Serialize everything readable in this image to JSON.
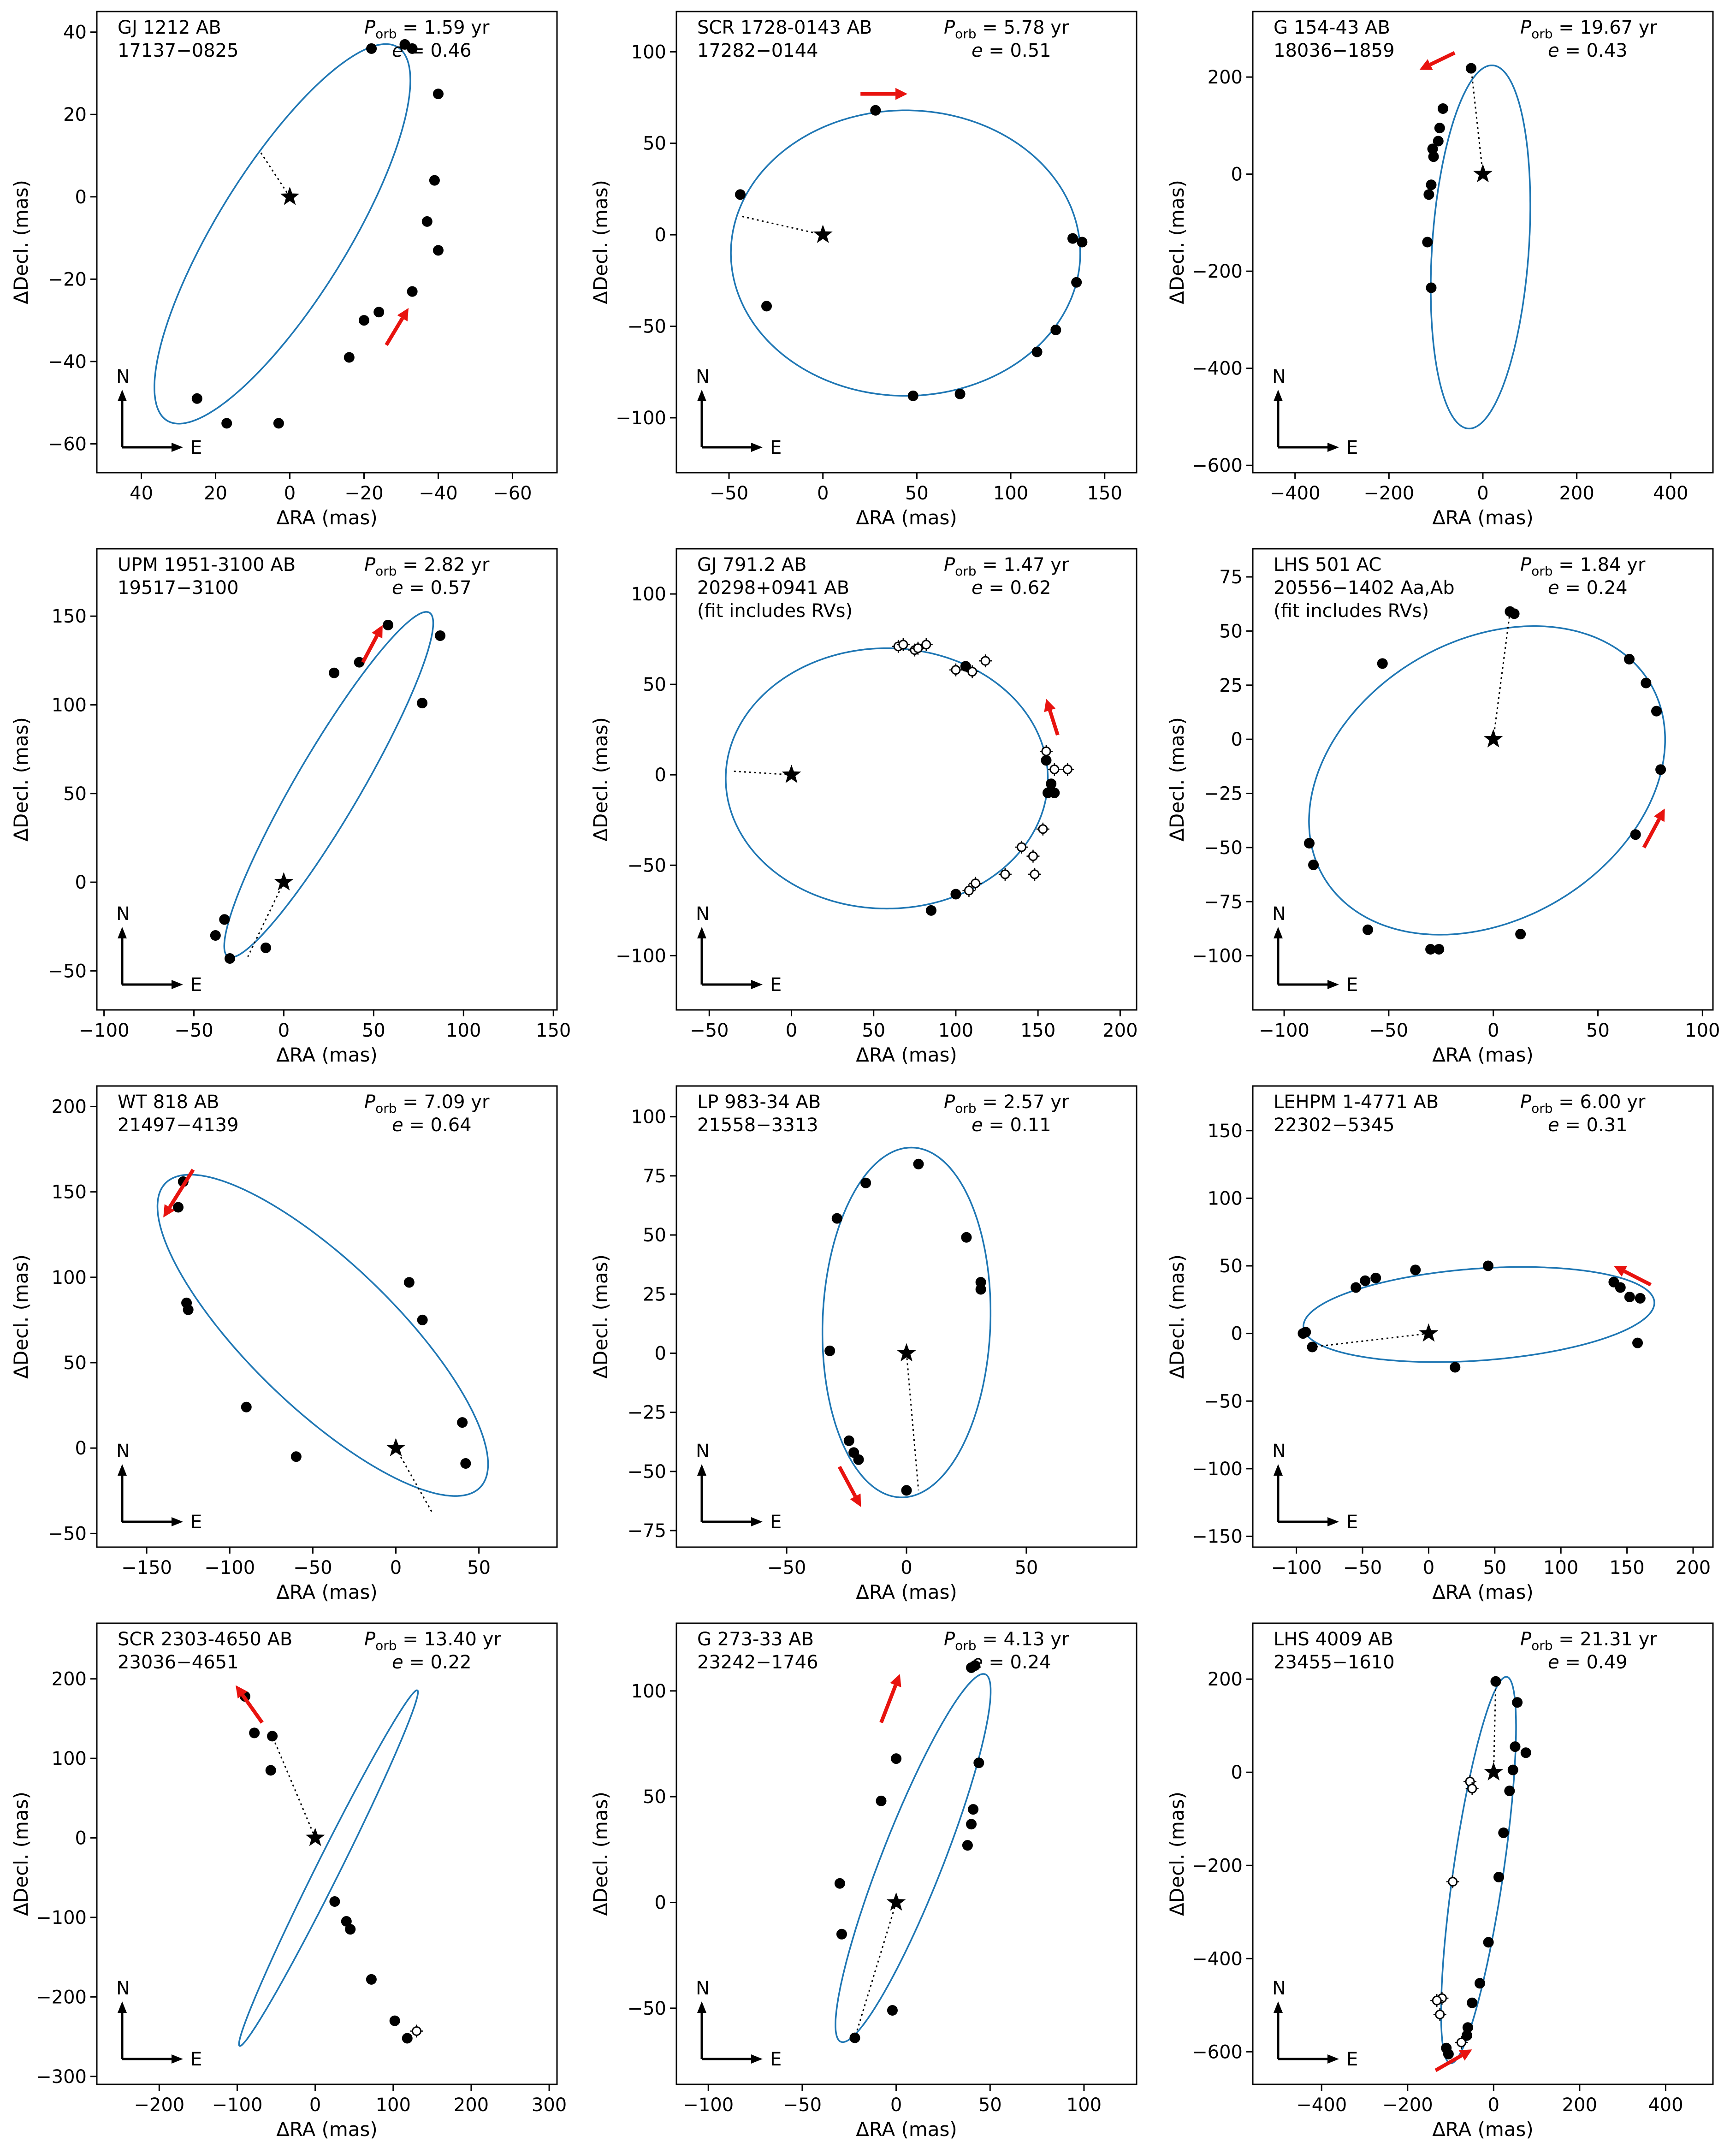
{
  "figure_title": "",
  "chart_data": [
    {
      "type": "scatter",
      "name": "GJ 1212 AB",
      "id_line": "17137−0825",
      "extra_note": "",
      "porb_label": "1.59 yr",
      "ecc_label": "0.46",
      "xlabel": "ΔRA  (mas)",
      "ylabel": "ΔDecl.  (mas)",
      "xlim": [
        52,
        -72
      ],
      "ylim": [
        -67,
        45
      ],
      "xticks": [
        40,
        20,
        0,
        -20,
        -40,
        -60
      ],
      "yticks": [
        -60,
        -40,
        -20,
        0,
        20,
        40
      ],
      "orbit": {
        "cx": 2,
        "cy": -9,
        "a": 55,
        "b": 17,
        "angle": 125
      },
      "star_line": [
        8,
        11
      ],
      "filled_points": [
        [
          -31,
          37
        ],
        [
          -33,
          36
        ],
        [
          -22,
          36
        ],
        [
          -40,
          25
        ],
        [
          -39,
          4
        ],
        [
          -37,
          -6
        ],
        [
          -40,
          -13
        ],
        [
          -33,
          -23
        ],
        [
          -24,
          -28
        ],
        [
          -20,
          -30
        ],
        [
          -16,
          -39
        ],
        [
          3,
          -55
        ],
        [
          17,
          -55
        ],
        [
          25,
          -49
        ]
      ],
      "open_points": [],
      "red_arrow": [
        [
          -26,
          -36
        ],
        [
          -32,
          -27
        ]
      ],
      "compass": {
        "N": "N",
        "E": "E"
      }
    },
    {
      "type": "scatter",
      "name": "SCR 1728-0143 AB",
      "id_line": "17282−0144",
      "extra_note": "",
      "porb_label": "5.78 yr",
      "ecc_label": "0.51",
      "xlabel": "ΔRA  (mas)",
      "ylabel": "ΔDecl.  (mas)",
      "xlim": [
        -78,
        167
      ],
      "ylim": [
        -130,
        122
      ],
      "xticks": [
        -50,
        0,
        50,
        100,
        150
      ],
      "yticks": [
        -100,
        -50,
        0,
        50,
        100
      ],
      "orbit": {
        "cx": 44,
        "cy": -10,
        "a": 93,
        "b": 78,
        "angle": 0
      },
      "star_line": [
        -43,
        10
      ],
      "filled_points": [
        [
          -44,
          22
        ],
        [
          -30,
          -39
        ],
        [
          28,
          68
        ],
        [
          48,
          -88
        ],
        [
          73,
          -87
        ],
        [
          114,
          -64
        ],
        [
          124,
          -52
        ],
        [
          133,
          -2
        ],
        [
          135,
          -26
        ],
        [
          138,
          -4
        ]
      ],
      "open_points": [],
      "red_arrow": [
        [
          20,
          77
        ],
        [
          45,
          77
        ]
      ],
      "compass": {
        "N": "N",
        "E": "E"
      }
    },
    {
      "type": "scatter",
      "name": "G 154-43 AB",
      "id_line": "18036−1859",
      "extra_note": "",
      "porb_label": "19.67 yr",
      "ecc_label": "0.43",
      "xlabel": "ΔRA  (mas)",
      "ylabel": "ΔDecl.  (mas)",
      "xlim": [
        -490,
        490
      ],
      "ylim": [
        -615,
        335
      ],
      "xticks": [
        -400,
        -200,
        0,
        200,
        400
      ],
      "yticks": [
        -600,
        -400,
        -200,
        0,
        200
      ],
      "orbit": {
        "cx": -5,
        "cy": -150,
        "a": 375,
        "b": 103,
        "angle": 86
      },
      "star_line": [
        -25,
        218
      ],
      "filled_points": [
        [
          -25,
          218
        ],
        [
          -85,
          135
        ],
        [
          -92,
          95
        ],
        [
          -95,
          68
        ],
        [
          -107,
          52
        ],
        [
          -105,
          36
        ],
        [
          -110,
          -22
        ],
        [
          -115,
          -42
        ],
        [
          -118,
          -140
        ],
        [
          -110,
          -234
        ]
      ],
      "open_points": [],
      "red_arrow": [
        [
          -60,
          250
        ],
        [
          -135,
          215
        ]
      ],
      "compass": {
        "N": "N",
        "E": "E"
      }
    },
    {
      "type": "scatter",
      "name": "UPM 1951-3100 AB",
      "id_line": "19517−3100",
      "extra_note": "",
      "porb_label": "2.82 yr",
      "ecc_label": "0.57",
      "xlabel": "ΔRA  (mas)",
      "ylabel": "ΔDecl.  (mas)",
      "xlim": [
        -104,
        152
      ],
      "ylim": [
        -72,
        188
      ],
      "xticks": [
        -100,
        -50,
        0,
        50,
        100,
        150
      ],
      "yticks": [
        -50,
        0,
        50,
        100,
        150
      ],
      "orbit": {
        "cx": 25,
        "cy": 55,
        "a": 112,
        "b": 18,
        "angle": 60
      },
      "star_line": [
        -20,
        -42
      ],
      "filled_points": [
        [
          -38,
          -30
        ],
        [
          -33,
          -21
        ],
        [
          -30,
          -43
        ],
        [
          -10,
          -37
        ],
        [
          28,
          118
        ],
        [
          42,
          124
        ],
        [
          58,
          145
        ],
        [
          77,
          101
        ],
        [
          87,
          139
        ]
      ],
      "open_points": [],
      "red_arrow": [
        [
          44,
          124
        ],
        [
          55,
          145
        ]
      ],
      "compass": {
        "N": "N",
        "E": "E"
      }
    },
    {
      "type": "scatter",
      "name": "GJ 791.2 AB",
      "id_line": "20298+0941 AB",
      "extra_note": "(fit includes RVs)",
      "porb_label": "1.47 yr",
      "ecc_label": "0.62",
      "xlabel": "ΔRA  (mas)",
      "ylabel": "ΔDecl.  (mas)",
      "xlim": [
        -70,
        210
      ],
      "ylim": [
        -130,
        125
      ],
      "xticks": [
        -50,
        0,
        50,
        100,
        150,
        200
      ],
      "yticks": [
        -100,
        -50,
        0,
        50,
        100
      ],
      "orbit": {
        "cx": 58,
        "cy": -2,
        "a": 98,
        "b": 72,
        "angle": 0
      },
      "star_line": [
        -36,
        2
      ],
      "filled_points": [
        [
          85,
          -75
        ],
        [
          100,
          -66
        ],
        [
          106,
          60
        ],
        [
          155,
          8
        ],
        [
          156,
          -10
        ],
        [
          160,
          -10
        ],
        [
          158,
          -5
        ]
      ],
      "open_points": [
        [
          65,
          71
        ],
        [
          68,
          72
        ],
        [
          75,
          69
        ],
        [
          77,
          70
        ],
        [
          82,
          72
        ],
        [
          100,
          58
        ],
        [
          110,
          57
        ],
        [
          118,
          63
        ],
        [
          108,
          -64
        ],
        [
          112,
          -60
        ],
        [
          130,
          -55
        ],
        [
          140,
          -40
        ],
        [
          147,
          -45
        ],
        [
          148,
          -55
        ],
        [
          153,
          -30
        ],
        [
          155,
          13
        ],
        [
          160,
          3
        ],
        [
          168,
          3
        ]
      ],
      "red_arrow": [
        [
          162,
          22
        ],
        [
          155,
          42
        ]
      ],
      "compass": {
        "N": "N",
        "E": "E"
      }
    },
    {
      "type": "scatter",
      "name": "LHS 501 AC",
      "id_line": "20556−1402 Aa,Ab",
      "extra_note": "(fit includes RVs)",
      "porb_label": "1.84 yr",
      "ecc_label": "0.24",
      "xlabel": "ΔRA  (mas)",
      "ylabel": "ΔDecl.  (mas)",
      "xlim": [
        -115,
        105
      ],
      "ylim": [
        -125,
        88
      ],
      "xticks": [
        -100,
        -50,
        0,
        50,
        100
      ],
      "yticks": [
        -100,
        -75,
        -50,
        -25,
        0,
        25,
        50,
        75
      ],
      "orbit": {
        "cx": -3,
        "cy": -19,
        "a": 90,
        "b": 65,
        "angle": 28
      },
      "star_line": [
        8,
        59
      ],
      "filled_points": [
        [
          -88,
          -48
        ],
        [
          -86,
          -58
        ],
        [
          -60,
          -88
        ],
        [
          -53,
          35
        ],
        [
          -30,
          -97
        ],
        [
          -26,
          -97
        ],
        [
          8,
          59
        ],
        [
          10,
          58
        ],
        [
          13,
          -90
        ],
        [
          65,
          37
        ],
        [
          73,
          26
        ],
        [
          78,
          13
        ],
        [
          80,
          -14
        ],
        [
          68,
          -44
        ]
      ],
      "open_points": [],
      "red_arrow": [
        [
          72,
          -50
        ],
        [
          82,
          -32
        ]
      ],
      "compass": {
        "N": "N",
        "E": "E"
      }
    },
    {
      "type": "scatter",
      "name": "WT 818 AB",
      "id_line": "21497−4139",
      "extra_note": "",
      "porb_label": "7.09 yr",
      "ecc_label": "0.64",
      "xlabel": "ΔRA  (mas)",
      "ylabel": "ΔDecl.  (mas)",
      "xlim": [
        -180,
        97
      ],
      "ylim": [
        -58,
        212
      ],
      "xticks": [
        -150,
        -100,
        -50,
        0,
        50
      ],
      "yticks": [
        -50,
        0,
        50,
        100,
        150,
        200
      ],
      "orbit": {
        "cx": -44,
        "cy": 66,
        "a": 130,
        "b": 43,
        "angle": 137
      },
      "star_line": [
        22,
        -38
      ],
      "filled_points": [
        [
          -128,
          156
        ],
        [
          -131,
          141
        ],
        [
          -126,
          85
        ],
        [
          -125,
          81
        ],
        [
          -90,
          24
        ],
        [
          -60,
          -5
        ],
        [
          8,
          97
        ],
        [
          16,
          75
        ],
        [
          40,
          15
        ],
        [
          42,
          -9
        ]
      ],
      "open_points": [],
      "red_arrow": [
        [
          -122,
          163
        ],
        [
          -140,
          135
        ]
      ],
      "compass": {
        "N": "N",
        "E": "E"
      }
    },
    {
      "type": "scatter",
      "name": "LP 983-34 AB",
      "id_line": "21558−3313",
      "extra_note": "",
      "porb_label": "2.57 yr",
      "ecc_label": "0.11",
      "xlabel": "ΔRA  (mas)",
      "ylabel": "ΔDecl.  (mas)",
      "xlim": [
        -96,
        96
      ],
      "ylim": [
        -82,
        113
      ],
      "xticks": [
        -50,
        0,
        50
      ],
      "yticks": [
        -75,
        -50,
        -25,
        0,
        25,
        50,
        75,
        100
      ],
      "orbit": {
        "cx": 0,
        "cy": 13,
        "a": 74,
        "b": 35,
        "angle": 88
      },
      "star_line": [
        5,
        -58
      ],
      "filled_points": [
        [
          -32,
          1
        ],
        [
          -29,
          57
        ],
        [
          -24,
          -37
        ],
        [
          -22,
          -42
        ],
        [
          -20,
          -45
        ],
        [
          -17,
          72
        ],
        [
          0,
          -58
        ],
        [
          5,
          80
        ],
        [
          25,
          49
        ],
        [
          31,
          30
        ],
        [
          31,
          27
        ]
      ],
      "open_points": [],
      "red_arrow": [
        [
          -28,
          -48
        ],
        [
          -19,
          -65
        ]
      ],
      "compass": {
        "N": "N",
        "E": "E"
      }
    },
    {
      "type": "scatter",
      "name": "LEHPM 1-4771 AB",
      "id_line": "22302−5345",
      "extra_note": "",
      "porb_label": "6.00 yr",
      "ecc_label": "0.31",
      "xlabel": "ΔRA  (mas)",
      "ylabel": "ΔDecl.  (mas)",
      "xlim": [
        -133,
        215
      ],
      "ylim": [
        -158,
        183
      ],
      "xticks": [
        -100,
        -50,
        0,
        50,
        100,
        150,
        200
      ],
      "yticks": [
        -150,
        -100,
        -50,
        0,
        50,
        100,
        150
      ],
      "orbit": {
        "cx": 38,
        "cy": 14,
        "a": 133,
        "b": 34,
        "angle": 4
      },
      "star_line": [
        -88,
        -10
      ],
      "filled_points": [
        [
          -95,
          0
        ],
        [
          -93,
          1
        ],
        [
          -88,
          -10
        ],
        [
          -55,
          34
        ],
        [
          -48,
          39
        ],
        [
          -40,
          41
        ],
        [
          -10,
          47
        ],
        [
          20,
          -25
        ],
        [
          45,
          50
        ],
        [
          140,
          38
        ],
        [
          145,
          34
        ],
        [
          152,
          27
        ],
        [
          160,
          26
        ],
        [
          158,
          -7
        ]
      ],
      "open_points": [],
      "red_arrow": [
        [
          168,
          36
        ],
        [
          140,
          50
        ]
      ],
      "compass": {
        "N": "N",
        "E": "E"
      }
    },
    {
      "type": "scatter",
      "name": "SCR 2303-4650 AB",
      "id_line": "23036−4651",
      "extra_note": "",
      "porb_label": "13.40 yr",
      "ecc_label": "0.22",
      "xlabel": "ΔRA  (mas)",
      "ylabel": "ΔDecl.  (mas)",
      "xlim": [
        -280,
        310
      ],
      "ylim": [
        -310,
        270
      ],
      "xticks": [
        -200,
        -100,
        0,
        100,
        200,
        300
      ],
      "yticks": [
        -300,
        -200,
        -100,
        0,
        100,
        200
      ],
      "orbit": {
        "cx": 17,
        "cy": -38,
        "a": 251,
        "b": 15,
        "angle": 63
      },
      "star_line": [
        -55,
        128
      ],
      "filled_points": [
        [
          -90,
          178
        ],
        [
          -78,
          132
        ],
        [
          -55,
          128
        ],
        [
          -57,
          85
        ],
        [
          25,
          -80
        ],
        [
          40,
          -105
        ],
        [
          45,
          -115
        ],
        [
          72,
          -178
        ],
        [
          102,
          -230
        ],
        [
          118,
          -252
        ]
      ],
      "open_points": [
        [
          130,
          -243
        ]
      ],
      "red_arrow": [
        [
          -68,
          145
        ],
        [
          -102,
          192
        ]
      ],
      "compass": {
        "N": "N",
        "E": "E"
      }
    },
    {
      "type": "scatter",
      "name": "G 273-33 AB",
      "id_line": "23242−1746",
      "extra_note": "",
      "porb_label": "4.13 yr",
      "ecc_label": "0.24",
      "xlabel": "ΔRA  (mas)",
      "ylabel": "ΔDecl.  (mas)",
      "xlim": [
        -117,
        128
      ],
      "ylim": [
        -86,
        132
      ],
      "xticks": [
        -100,
        -50,
        0,
        50,
        100
      ],
      "yticks": [
        -50,
        0,
        50,
        100
      ],
      "orbit": {
        "cx": 9,
        "cy": 21,
        "a": 95,
        "b": 16,
        "angle": 66
      },
      "star_line": [
        -22,
        -64
      ],
      "filled_points": [
        [
          -30,
          9
        ],
        [
          -29,
          -15
        ],
        [
          -22,
          -64
        ],
        [
          -8,
          48
        ],
        [
          -2,
          -51
        ],
        [
          0,
          68
        ],
        [
          38,
          27
        ],
        [
          40,
          37
        ],
        [
          41,
          44
        ],
        [
          40,
          111
        ],
        [
          42,
          112
        ],
        [
          44,
          66
        ]
      ],
      "open_points": [],
      "red_arrow": [
        [
          -8,
          85
        ],
        [
          2,
          108
        ]
      ],
      "compass": {
        "N": "N",
        "E": "E"
      }
    },
    {
      "type": "scatter",
      "name": "LHS 4009 AB",
      "id_line": "23455−1610",
      "extra_note": "",
      "porb_label": "21.31 yr",
      "ecc_label": "0.49",
      "xlabel": "ΔRA  (mas)",
      "ylabel": "ΔDecl.  (mas)",
      "xlim": [
        -560,
        510
      ],
      "ylim": [
        -670,
        320
      ],
      "xticks": [
        -400,
        -200,
        0,
        200,
        400
      ],
      "yticks": [
        -600,
        -400,
        -200,
        0,
        200
      ],
      "orbit": {
        "cx": -35,
        "cy": -210,
        "a": 420,
        "b": 58,
        "angle": 81
      },
      "star_line": [
        5,
        195
      ],
      "filled_points": [
        [
          -110,
          -592
        ],
        [
          -62,
          -565
        ],
        [
          -60,
          -548
        ],
        [
          -50,
          -495
        ],
        [
          -32,
          -453
        ],
        [
          -12,
          -365
        ],
        [
          12,
          -225
        ],
        [
          23,
          -130
        ],
        [
          37,
          -40
        ],
        [
          45,
          5
        ],
        [
          50,
          55
        ],
        [
          55,
          150
        ],
        [
          5,
          195
        ],
        [
          75,
          42
        ],
        [
          -105,
          -605
        ]
      ],
      "open_points": [
        [
          -120,
          -485
        ],
        [
          -132,
          -490
        ],
        [
          -125,
          -520
        ],
        [
          -95,
          -235
        ],
        [
          -55,
          -20
        ],
        [
          -50,
          -35
        ],
        [
          -75,
          -580
        ]
      ],
      "red_arrow": [
        [
          -135,
          -640
        ],
        [
          -50,
          -595
        ]
      ],
      "compass": {
        "N": "N",
        "E": "E"
      }
    }
  ]
}
